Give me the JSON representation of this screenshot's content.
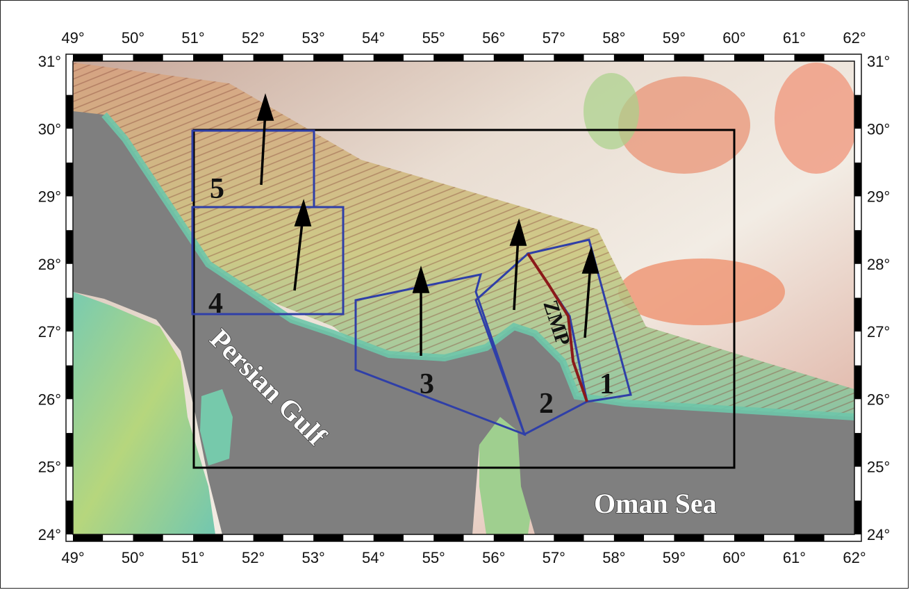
{
  "map": {
    "lon_ticks": [
      "49°",
      "50°",
      "51°",
      "52°",
      "53°",
      "54°",
      "55°",
      "56°",
      "57°",
      "58°",
      "59°",
      "60°",
      "61°",
      "62°"
    ],
    "lat_ticks": [
      "31°",
      "30°",
      "29°",
      "28°",
      "27°",
      "26°",
      "25°",
      "24°"
    ],
    "labels": {
      "persian_gulf": "Persian Gulf",
      "oman_sea": "Oman Sea",
      "fault": "ZMP"
    },
    "regions": [
      "1",
      "2",
      "3",
      "4",
      "5"
    ],
    "colors": {
      "sea": "#7f7f7f",
      "region_outline": "#2f3fa8",
      "study_box": "#000000",
      "fault_line": "#8b1a1a"
    }
  }
}
